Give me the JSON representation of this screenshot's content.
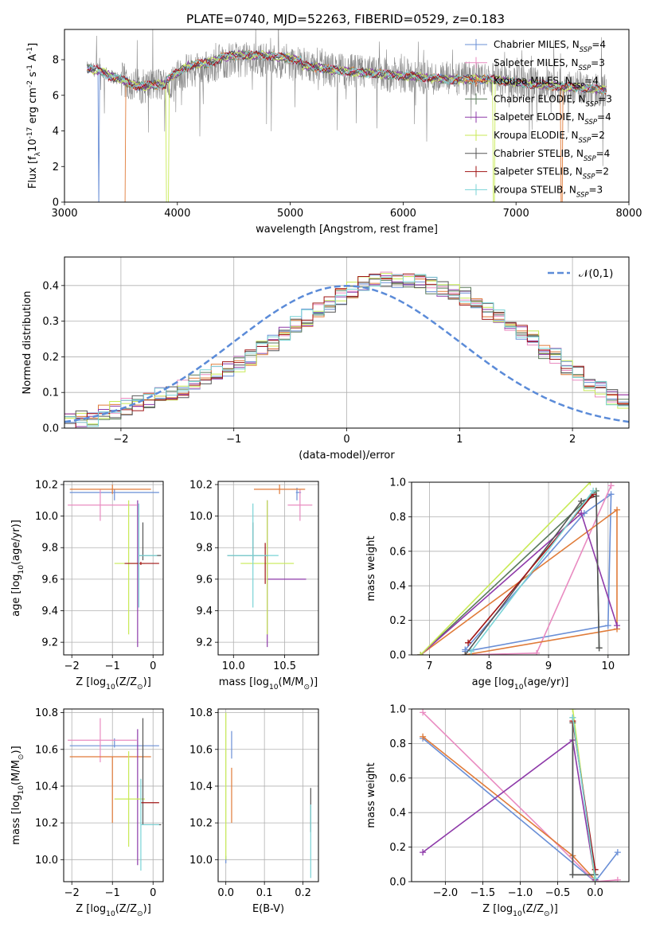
{
  "figure": {
    "title": "PLATE=0740, MJD=52263, FIBERID=0529, z=0.183"
  },
  "colors": {
    "chabrier_miles": "#6a8fd6",
    "salpeter_miles": "#e98bc1",
    "kroupa_miles": "#e07b39",
    "chabrier_elodie": "#5a7a5a",
    "salpeter_elodie": "#8e3aa9",
    "kroupa_elodie": "#c8ea55",
    "chabrier_stelib": "#555555",
    "salpeter_stelib": "#a01515",
    "kroupa_stelib": "#79d3d6",
    "normal_curve": "#5b8bd8",
    "grid": "#b0b0b0"
  },
  "legend": {
    "entries": [
      {
        "key": "chabrier_miles",
        "label": "Chabrier MILES, N$_{SSP}$=4",
        "base": "Chabrier MILES, N",
        "sub": "SSP",
        "tail": "=4"
      },
      {
        "key": "salpeter_miles",
        "label": "Salpeter MILES, N$_{SSP}$=3",
        "base": "Salpeter MILES, N",
        "sub": "SSP",
        "tail": "=3"
      },
      {
        "key": "kroupa_miles",
        "label": "Kroupa MILES, N$_{SSP}$=4",
        "base": "Kroupa MILES, N",
        "sub": "SSP",
        "tail": "=4"
      },
      {
        "key": "chabrier_elodie",
        "label": "Chabrier ELODIE, N$_{SSP}$=3",
        "base": "Chabrier ELODIE, N",
        "sub": "SSP",
        "tail": "=3"
      },
      {
        "key": "salpeter_elodie",
        "label": "Salpeter ELODIE, N$_{SSP}$=4",
        "base": "Salpeter ELODIE, N",
        "sub": "SSP",
        "tail": "=4"
      },
      {
        "key": "kroupa_elodie",
        "label": "Kroupa ELODIE, N$_{SSP}$=2",
        "base": "Kroupa ELODIE, N",
        "sub": "SSP",
        "tail": "=2"
      },
      {
        "key": "chabrier_stelib",
        "label": "Chabrier STELIB, N$_{SSP}$=4",
        "base": "Chabrier STELIB, N",
        "sub": "SSP",
        "tail": "=4"
      },
      {
        "key": "salpeter_stelib",
        "label": "Salpeter STELIB, N$_{SSP}$=2",
        "base": "Salpeter STELIB, N",
        "sub": "SSP",
        "tail": "=2"
      },
      {
        "key": "kroupa_stelib",
        "label": "Kroupa STELIB, N$_{SSP}$=3",
        "base": "Kroupa STELIB, N",
        "sub": "SSP",
        "tail": "=3"
      }
    ]
  },
  "chart_data": [
    {
      "id": "spectrum",
      "type": "line",
      "xlabel": "wavelength [Angstrom, rest frame]",
      "ylabel": "Flux [f$_\\lambda$10$^{-17}$ erg cm$^{-2}$ s$^{-1}$ A$^{-1}$]",
      "xlim": [
        3000,
        8000
      ],
      "ylim": [
        0,
        9.7
      ],
      "xticks": [
        3000,
        4000,
        5000,
        6000,
        7000,
        8000
      ],
      "yticks": [
        0,
        2,
        4,
        6,
        8
      ],
      "continuum": {
        "x": [
          3200,
          3300,
          3400,
          3500,
          3600,
          3700,
          3800,
          3900,
          4000,
          4100,
          4200,
          4300,
          4400,
          4500,
          4600,
          4800,
          5000,
          5200,
          5400,
          5600,
          5800,
          6000,
          6200,
          6400,
          6600,
          6800,
          7000,
          7200,
          7400,
          7600,
          7800
        ],
        "y": [
          7.5,
          7.4,
          7.1,
          6.9,
          6.6,
          6.5,
          6.6,
          6.6,
          7.0,
          7.4,
          7.5,
          7.6,
          7.9,
          8.0,
          8.0,
          8.0,
          7.8,
          7.6,
          7.4,
          7.3,
          7.2,
          7.1,
          7.0,
          6.9,
          6.9,
          6.9,
          6.7,
          6.6,
          6.5,
          6.4,
          6.3
        ]
      },
      "data_noise_amplitude": 1.0,
      "model_dropouts": [
        {
          "series": "chabrier_miles",
          "x_from": 3300,
          "x_to": 3310
        },
        {
          "series": "kroupa_miles",
          "x_from": 3200,
          "x_to": 3540
        },
        {
          "series": "kroupa_elodie",
          "x_from": 3900,
          "x_to": 3920
        },
        {
          "series": "kroupa_elodie",
          "x_from": 6795,
          "x_to": 6815
        },
        {
          "series": "kroupa_miles",
          "x_from": 7395,
          "x_to": 7410
        }
      ]
    },
    {
      "id": "residuals",
      "type": "step",
      "xlabel": "(data-model)/error",
      "ylabel": "Normed distribution",
      "xlim": [
        -2.5,
        2.5
      ],
      "ylim": [
        0,
        0.48
      ],
      "xticks": [
        -2,
        -1,
        0,
        1,
        2
      ],
      "yticks": [
        0.0,
        0.1,
        0.2,
        0.3,
        0.4
      ],
      "normal_label": "$\\mathcal{N}(0,1)$",
      "bin_edges_from": -2.5,
      "bin_width": 0.1,
      "base_heights": [
        0.02,
        0.025,
        0.03,
        0.04,
        0.05,
        0.06,
        0.07,
        0.08,
        0.09,
        0.1,
        0.11,
        0.13,
        0.14,
        0.16,
        0.17,
        0.18,
        0.2,
        0.22,
        0.24,
        0.26,
        0.29,
        0.31,
        0.33,
        0.35,
        0.37,
        0.39,
        0.41,
        0.42,
        0.42,
        0.41,
        0.42,
        0.41,
        0.4,
        0.39,
        0.38,
        0.37,
        0.35,
        0.33,
        0.31,
        0.29,
        0.27,
        0.25,
        0.22,
        0.2,
        0.17,
        0.15,
        0.13,
        0.11,
        0.09,
        0.07,
        0.05
      ]
    },
    {
      "id": "age_vs_Z",
      "type": "errorbar",
      "xlabel": "Z [log$_{10}$(Z/Z$_\\odot$)]",
      "ylabel": "age  [log$_{10}$(age/yr)]",
      "xlim": [
        -2.2,
        0.25
      ],
      "ylim": [
        9.12,
        10.22
      ],
      "xticks": [
        -2,
        -1,
        0
      ],
      "yticks": [
        9.2,
        9.4,
        9.6,
        9.8,
        10.0,
        10.2
      ],
      "points": [
        {
          "series": "chabrier_miles",
          "x": -0.95,
          "xerr": [
            1.1,
            1.1
          ],
          "y": 10.15,
          "yerr": [
            0.05,
            0.02
          ]
        },
        {
          "series": "salpeter_miles",
          "x": -1.3,
          "xerr": [
            0.8,
            0.9
          ],
          "y": 10.07,
          "yerr": [
            0.1,
            0.1
          ]
        },
        {
          "series": "kroupa_miles",
          "x": -1.0,
          "xerr": [
            1.05,
            0.95
          ],
          "y": 10.17,
          "yerr": [
            0.03,
            0.03
          ]
        },
        {
          "series": "salpeter_elodie",
          "x": -0.38,
          "xerr": [
            0.0,
            0.0
          ],
          "y": 9.6,
          "yerr": [
            0.43,
            0.5
          ]
        },
        {
          "series": "kroupa_elodie",
          "x": -0.6,
          "xerr": [
            0.35,
            0.4
          ],
          "y": 9.7,
          "yerr": [
            0.45,
            0.4
          ]
        },
        {
          "series": "chabrier_stelib",
          "x": -0.25,
          "xerr": [
            0.1,
            0.45
          ],
          "y": 9.75,
          "yerr": [
            0.03,
            0.21
          ]
        },
        {
          "series": "salpeter_stelib",
          "x": -0.3,
          "xerr": [
            0.4,
            0.45
          ],
          "y": 9.7,
          "yerr": [
            0.01,
            0.01
          ]
        },
        {
          "series": "kroupa_stelib",
          "x": -0.35,
          "xerr": [
            0.0,
            0.45
          ],
          "y": 9.75,
          "yerr": [
            0.33,
            0.33
          ]
        }
      ]
    },
    {
      "id": "age_vs_mass",
      "type": "errorbar",
      "xlabel": "mass [log$_{10}$(M/M$_\\odot$)]",
      "ylabel": "",
      "xlim": [
        9.85,
        10.83
      ],
      "ylim": [
        9.12,
        10.22
      ],
      "xticks": [
        10.0,
        10.5
      ],
      "yticks": [
        9.2,
        9.4,
        9.6,
        9.8,
        10.0,
        10.2
      ],
      "points": [
        {
          "series": "chabrier_miles",
          "x": 10.62,
          "xerr": [
            0.01,
            0.04
          ],
          "y": 10.15,
          "yerr": [
            0.05,
            0.03
          ]
        },
        {
          "series": "salpeter_miles",
          "x": 10.65,
          "xerr": [
            0.12,
            0.12
          ],
          "y": 10.07,
          "yerr": [
            0.1,
            0.1
          ]
        },
        {
          "series": "kroupa_miles",
          "x": 10.45,
          "xerr": [
            0.25,
            0.25
          ],
          "y": 10.17,
          "yerr": [
            0.03,
            0.03
          ]
        },
        {
          "series": "salpeter_elodie",
          "x": 10.33,
          "xerr": [
            0.0,
            0.38
          ],
          "y": 9.6,
          "yerr": [
            0.43,
            0.5
          ]
        },
        {
          "series": "kroupa_elodie",
          "x": 10.33,
          "xerr": [
            0.26,
            0.26
          ],
          "y": 9.7,
          "yerr": [
            0.45,
            0.4
          ]
        },
        {
          "series": "chabrier_stelib",
          "x": 10.19,
          "xerr": [
            0.25,
            0.15
          ],
          "y": 9.75,
          "yerr": [
            0.03,
            0.21
          ]
        },
        {
          "series": "salpeter_stelib",
          "x": 10.31,
          "xerr": [
            0.0,
            0.0
          ],
          "y": 9.7,
          "yerr": [
            0.13,
            0.13
          ]
        },
        {
          "series": "kroupa_stelib",
          "x": 10.19,
          "xerr": [
            0.25,
            0.25
          ],
          "y": 9.75,
          "yerr": [
            0.33,
            0.33
          ]
        }
      ]
    },
    {
      "id": "weight_vs_age",
      "type": "line",
      "xlabel": "age  [log$_{10}$(age/yr)]",
      "ylabel": "mass weight",
      "xlim": [
        6.7,
        10.35
      ],
      "ylim": [
        0,
        1.0
      ],
      "xticks": [
        7,
        8,
        9,
        10
      ],
      "yticks": [
        0.0,
        0.2,
        0.4,
        0.6,
        0.8,
        1.0
      ],
      "series": [
        {
          "key": "chabrier_miles",
          "x": [
            7.6,
            10.0,
            10.05,
            9.6,
            7.6
          ],
          "y": [
            0.02,
            0.17,
            0.93,
            0.82,
            0.03
          ]
        },
        {
          "key": "salpeter_miles",
          "x": [
            7.6,
            8.8,
            10.05,
            10.05
          ],
          "y": [
            0.0,
            0.01,
            0.98,
            0.98
          ]
        },
        {
          "key": "kroupa_miles",
          "x": [
            6.85,
            10.15,
            10.15,
            7.6
          ],
          "y": [
            0.0,
            0.84,
            0.15,
            0.0
          ]
        },
        {
          "key": "chabrier_elodie",
          "x": [
            6.85,
            9.8,
            9.85
          ],
          "y": [
            0.0,
            0.95,
            0.04
          ]
        },
        {
          "key": "salpeter_elodie",
          "x": [
            6.85,
            9.55,
            10.15
          ],
          "y": [
            0.0,
            0.82,
            0.17
          ]
        },
        {
          "key": "kroupa_elodie",
          "x": [
            6.85,
            9.7
          ],
          "y": [
            0.0,
            1.0
          ]
        },
        {
          "key": "chabrier_stelib",
          "x": [
            7.6,
            9.55,
            9.8,
            9.85
          ],
          "y": [
            0.0,
            0.89,
            0.92,
            0.04
          ]
        },
        {
          "key": "salpeter_stelib",
          "x": [
            7.65,
            9.75
          ],
          "y": [
            0.07,
            0.93
          ]
        },
        {
          "key": "kroupa_stelib",
          "x": [
            7.7,
            9.75
          ],
          "y": [
            0.02,
            0.95
          ]
        }
      ]
    },
    {
      "id": "mass_vs_Z",
      "type": "errorbar",
      "xlabel": "Z [log$_{10}$(Z/Z$_\\odot$)]",
      "ylabel": "mass [log$_{10}$(M/M$_\\odot$)]",
      "xlim": [
        -2.2,
        0.25
      ],
      "ylim": [
        9.88,
        10.82
      ],
      "xticks": [
        -2,
        -1,
        0
      ],
      "yticks": [
        10.0,
        10.2,
        10.4,
        10.6,
        10.8
      ],
      "points": [
        {
          "series": "chabrier_miles",
          "x": -0.95,
          "xerr": [
            1.1,
            1.1
          ],
          "y": 10.62,
          "yerr": [
            0.01,
            0.04
          ]
        },
        {
          "series": "salpeter_miles",
          "x": -1.3,
          "xerr": [
            0.8,
            0.9
          ],
          "y": 10.65,
          "yerr": [
            0.12,
            0.12
          ]
        },
        {
          "series": "kroupa_miles",
          "x": -1.0,
          "xerr": [
            1.05,
            0.95
          ],
          "y": 10.56,
          "yerr": [
            0.36,
            0.0
          ]
        },
        {
          "series": "salpeter_elodie",
          "x": -0.38,
          "xerr": [
            0.0,
            0.0
          ],
          "y": 10.33,
          "yerr": [
            0.36,
            0.38
          ]
        },
        {
          "series": "kroupa_elodie",
          "x": -0.6,
          "xerr": [
            0.35,
            0.4
          ],
          "y": 10.33,
          "yerr": [
            0.26,
            0.26
          ]
        },
        {
          "series": "chabrier_stelib",
          "x": -0.25,
          "xerr": [
            0.0,
            0.45
          ],
          "y": 10.19,
          "yerr": [
            0.0,
            0.58
          ]
        },
        {
          "series": "salpeter_stelib",
          "x": -0.3,
          "xerr": [
            0.0,
            0.45
          ],
          "y": 10.31,
          "yerr": [
            0.0,
            0.0
          ]
        },
        {
          "series": "kroupa_stelib",
          "x": -0.3,
          "xerr": [
            0.0,
            0.45
          ],
          "y": 10.19,
          "yerr": [
            0.25,
            0.25
          ]
        }
      ]
    },
    {
      "id": "mass_vs_ebv",
      "type": "errorbar",
      "xlabel": "E(B-V)",
      "ylabel": "",
      "xlim": [
        -0.02,
        0.24
      ],
      "ylim": [
        9.88,
        10.82
      ],
      "xticks": [
        0.0,
        0.1,
        0.2
      ],
      "yticks": [
        10.0,
        10.2,
        10.4,
        10.6,
        10.8
      ],
      "points": [
        {
          "series": "chabrier_miles",
          "x": 0.0,
          "y": 10.0,
          "yerr": [
            0.02,
            0.02
          ]
        },
        {
          "series": "kroupa_elodie",
          "x": 0.0,
          "y": 10.4,
          "yerr": [
            0.4,
            0.4
          ]
        },
        {
          "series": "chabrier_miles",
          "x": 0.015,
          "y": 10.55,
          "yerr": [
            0.0,
            0.15
          ]
        },
        {
          "series": "kroupa_miles",
          "x": 0.015,
          "y": 10.35,
          "yerr": [
            0.15,
            0.15
          ]
        },
        {
          "series": "chabrier_stelib",
          "x": 0.22,
          "y": 10.15,
          "yerr": [
            0.0,
            0.24
          ]
        },
        {
          "series": "kroupa_stelib",
          "x": 0.22,
          "y": 10.1,
          "yerr": [
            0.2,
            0.2
          ]
        }
      ]
    },
    {
      "id": "weight_vs_Z",
      "type": "line",
      "xlabel": "Z [log$_{10}$(Z/Z$_\\odot$)]",
      "ylabel": "mass weight",
      "xlim": [
        -2.45,
        0.45
      ],
      "ylim": [
        0,
        1.0
      ],
      "xticks": [
        -2.0,
        -1.5,
        -1.0,
        -0.5,
        0.0
      ],
      "yticks": [
        0.0,
        0.2,
        0.4,
        0.6,
        0.8,
        1.0
      ],
      "series": [
        {
          "key": "chabrier_miles",
          "x": [
            -2.3,
            0.0,
            0.3
          ],
          "y": [
            0.83,
            0.0,
            0.17
          ]
        },
        {
          "key": "salpeter_miles",
          "x": [
            -2.3,
            0.0,
            0.3
          ],
          "y": [
            0.98,
            0.0,
            0.01
          ]
        },
        {
          "key": "kroupa_miles",
          "x": [
            -2.3,
            -0.3,
            0.0
          ],
          "y": [
            0.84,
            0.15,
            0.01
          ]
        },
        {
          "key": "chabrier_elodie",
          "x": [
            -0.3,
            -0.3,
            0.0
          ],
          "y": [
            0.95,
            0.04,
            0.04
          ]
        },
        {
          "key": "salpeter_elodie",
          "x": [
            -2.3,
            -0.3,
            0.0
          ],
          "y": [
            0.17,
            0.82,
            0.01
          ]
        },
        {
          "key": "kroupa_elodie",
          "x": [
            -0.3,
            0.0
          ],
          "y": [
            1.0,
            0.0
          ]
        },
        {
          "key": "chabrier_stelib",
          "x": [
            -0.3,
            -0.3,
            0.0
          ],
          "y": [
            0.92,
            0.04,
            0.04
          ]
        },
        {
          "key": "salpeter_stelib",
          "x": [
            -0.3,
            0.0
          ],
          "y": [
            0.93,
            0.07
          ]
        },
        {
          "key": "kroupa_stelib",
          "x": [
            -0.3,
            0.0
          ],
          "y": [
            0.95,
            0.02
          ]
        }
      ]
    }
  ]
}
